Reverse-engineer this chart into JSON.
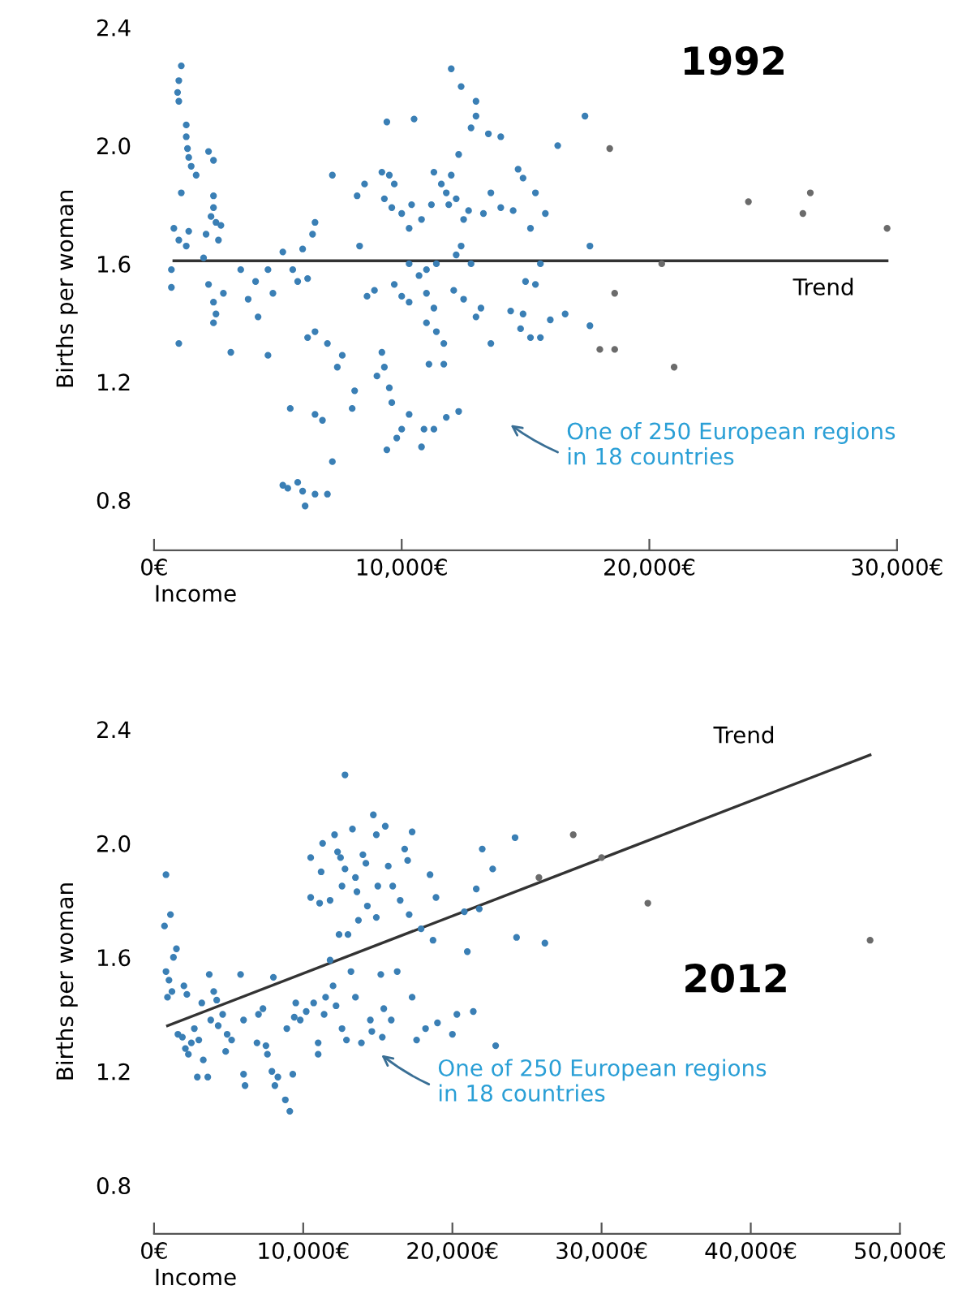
{
  "chart_data": [
    {
      "type": "scatter",
      "title": "1992",
      "xlabel": "Income",
      "ylabel": "Births per woman",
      "xlim": [
        0,
        30000
      ],
      "ylim": [
        0.63,
        2.4
      ],
      "xticks": [
        {
          "value": 0,
          "label": "0€"
        },
        {
          "value": 10000,
          "label": "10,000€"
        },
        {
          "value": 20000,
          "label": "20,000€"
        },
        {
          "value": 30000,
          "label": "30,000€"
        }
      ],
      "yticks": [
        0.8,
        1.2,
        1.6,
        {
          "value": 2.0,
          "label": "2.0"
        },
        2.4
      ],
      "grid": false,
      "series": [
        {
          "type": "scatter",
          "marker": "circle",
          "color": "#3a7fb5",
          "x": [
            1100,
            1000,
            950,
            1000,
            1300,
            1300,
            1350,
            1400,
            1500,
            1700,
            1100,
            800,
            1000,
            1400,
            1300,
            700,
            700,
            1000,
            2200,
            2400,
            2400,
            2400,
            2300,
            2500,
            2700,
            2100,
            2600,
            2000,
            2200,
            2400,
            2500,
            2400,
            2800,
            3100,
            3500,
            3800,
            4100,
            4200,
            4600,
            4800,
            4600,
            5200,
            5600,
            5800,
            6000,
            6200,
            6400,
            6500,
            7200,
            6200,
            6500,
            7000,
            7400,
            7600,
            5500,
            6500,
            6800,
            7200,
            5200,
            5400,
            5800,
            6000,
            6100,
            6500,
            7000,
            8000,
            8100,
            8300,
            8200,
            8500,
            8600,
            8900,
            9200,
            9000,
            9300,
            9500,
            9600,
            9400,
            9800,
            10000,
            10300,
            10800,
            10900,
            11300,
            11800,
            12300,
            9400,
            10500,
            9200,
            9500,
            9700,
            9300,
            9600,
            10000,
            10400,
            10300,
            10800,
            11200,
            11300,
            11600,
            11800,
            12000,
            11900,
            12200,
            12500,
            12700,
            12400,
            12200,
            12800,
            11400,
            11000,
            10300,
            9700,
            10000,
            10300,
            10700,
            11000,
            11300,
            11000,
            11400,
            11700,
            11100,
            11700,
            12100,
            12500,
            13000,
            13200,
            12000,
            12400,
            13000,
            13000,
            12800,
            13500,
            14000,
            12300,
            13600,
            13300,
            14000,
            14700,
            14900,
            14500,
            15400,
            15800,
            15200,
            14400,
            14800,
            14900,
            15200,
            15600,
            15400,
            15600,
            15000,
            13600,
            16000,
            16600,
            16300,
            17400,
            17600,
            17600
          ],
          "values": [
            2.27,
            2.22,
            2.18,
            2.15,
            2.07,
            2.03,
            1.99,
            1.96,
            1.93,
            1.9,
            1.84,
            1.72,
            1.68,
            1.71,
            1.66,
            1.58,
            1.52,
            1.33,
            1.98,
            1.95,
            1.83,
            1.79,
            1.76,
            1.74,
            1.73,
            1.7,
            1.68,
            1.62,
            1.53,
            1.47,
            1.43,
            1.4,
            1.5,
            1.3,
            1.58,
            1.48,
            1.54,
            1.42,
            1.58,
            1.5,
            1.29,
            1.64,
            1.58,
            1.54,
            1.65,
            1.55,
            1.7,
            1.74,
            1.9,
            1.35,
            1.37,
            1.33,
            1.25,
            1.29,
            1.11,
            1.09,
            1.07,
            0.93,
            0.85,
            0.84,
            0.86,
            0.83,
            0.78,
            0.82,
            0.82,
            1.11,
            1.17,
            1.66,
            1.83,
            1.87,
            1.49,
            1.51,
            1.3,
            1.22,
            1.25,
            1.18,
            1.13,
            0.97,
            1.01,
            1.04,
            1.09,
            0.98,
            1.04,
            1.04,
            1.08,
            1.1,
            2.08,
            2.09,
            1.91,
            1.9,
            1.87,
            1.82,
            1.79,
            1.77,
            1.8,
            1.72,
            1.75,
            1.8,
            1.91,
            1.87,
            1.84,
            1.9,
            1.8,
            1.82,
            1.75,
            1.78,
            1.66,
            1.63,
            1.6,
            1.6,
            1.58,
            1.6,
            1.53,
            1.49,
            1.47,
            1.56,
            1.5,
            1.45,
            1.4,
            1.37,
            1.33,
            1.26,
            1.26,
            1.51,
            1.48,
            1.42,
            1.45,
            2.26,
            2.2,
            2.15,
            2.1,
            2.06,
            2.04,
            2.03,
            1.97,
            1.84,
            1.77,
            1.79,
            1.92,
            1.89,
            1.78,
            1.84,
            1.77,
            1.72,
            1.44,
            1.38,
            1.43,
            1.35,
            1.35,
            1.53,
            1.6,
            1.54,
            1.33,
            1.41,
            1.43,
            2.0,
            2.1,
            1.66,
            1.39
          ]
        },
        {
          "type": "scatter",
          "marker": "circle",
          "color": "#6b6b6b",
          "x": [
            18400,
            18600,
            18000,
            18600,
            20500,
            21000,
            24000,
            26200,
            26500,
            29600
          ],
          "values": [
            1.99,
            1.5,
            1.31,
            1.31,
            1.6,
            1.25,
            1.81,
            1.77,
            1.84,
            1.72
          ]
        },
        {
          "type": "line",
          "color": "#333333",
          "x": [
            800,
            29600
          ],
          "values": [
            1.61,
            1.61
          ]
        }
      ],
      "annotations": [
        "Trend",
        "One of 250 European regions\nin 18 countries"
      ]
    },
    {
      "type": "scatter",
      "title": "2012",
      "xlabel": "Income",
      "ylabel": "Births per woman",
      "xlim": [
        0,
        50000
      ],
      "ylim": [
        0.63,
        2.4
      ],
      "xticks": [
        {
          "value": 0,
          "label": "0€"
        },
        {
          "value": 10000,
          "label": "10,000€"
        },
        {
          "value": 20000,
          "label": "20,000€"
        },
        {
          "value": 30000,
          "label": "30,000€"
        },
        {
          "value": 40000,
          "label": "40,000€"
        },
        {
          "value": 50000,
          "label": "50,000€"
        }
      ],
      "yticks": [
        0.8,
        1.2,
        1.6,
        {
          "value": 2.0,
          "label": "2.0"
        },
        2.4
      ],
      "grid": false,
      "series": [
        {
          "type": "scatter",
          "marker": "circle",
          "color": "#3a7fb5",
          "x": [
            800,
            700,
            1100,
            800,
            1000,
            1300,
            1500,
            1200,
            900,
            2000,
            2200,
            1600,
            1900,
            2100,
            2300,
            2500,
            2700,
            3000,
            3200,
            2900,
            3600,
            3300,
            3700,
            4000,
            4200,
            3800,
            4300,
            4600,
            4900,
            5200,
            4800,
            5800,
            6000,
            6000,
            6100,
            6900,
            7000,
            7300,
            7500,
            7600,
            8000,
            7900,
            8100,
            8300,
            8800,
            8900,
            9100,
            9300,
            9400,
            9500,
            9800,
            10200,
            10500,
            10500,
            10700,
            11000,
            11100,
            11200,
            11300,
            11400,
            11000,
            11500,
            11800,
            11800,
            12000,
            12200,
            12100,
            12300,
            12400,
            12600,
            12500,
            12800,
            12600,
            12900,
            13000,
            13200,
            12800,
            13300,
            13500,
            13600,
            13700,
            13500,
            13900,
            14000,
            14200,
            14300,
            14500,
            14600,
            14700,
            14900,
            15000,
            14900,
            15200,
            15400,
            15300,
            15500,
            15700,
            15900,
            16000,
            16300,
            16500,
            16800,
            17000,
            17100,
            17300,
            17300,
            17600,
            17900,
            18200,
            18500,
            18700,
            18900,
            19000,
            20000,
            20300,
            20800,
            21000,
            21400,
            21600,
            21800,
            22000,
            22700,
            22900,
            24200,
            24300,
            26200
          ],
          "values": [
            1.89,
            1.71,
            1.75,
            1.55,
            1.52,
            1.6,
            1.63,
            1.48,
            1.46,
            1.5,
            1.47,
            1.33,
            1.32,
            1.28,
            1.26,
            1.3,
            1.35,
            1.31,
            1.44,
            1.18,
            1.18,
            1.24,
            1.54,
            1.48,
            1.45,
            1.38,
            1.36,
            1.4,
            1.33,
            1.31,
            1.27,
            1.54,
            1.38,
            1.19,
            1.15,
            1.3,
            1.4,
            1.42,
            1.29,
            1.26,
            1.53,
            1.2,
            1.15,
            1.18,
            1.1,
            1.35,
            1.06,
            1.19,
            1.39,
            1.44,
            1.38,
            1.41,
            1.95,
            1.81,
            1.44,
            1.26,
            1.79,
            1.9,
            2.0,
            1.4,
            1.3,
            1.46,
            1.59,
            1.8,
            1.5,
            1.43,
            2.03,
            1.97,
            1.68,
            1.85,
            1.95,
            1.91,
            1.35,
            1.31,
            1.68,
            1.55,
            2.24,
            2.05,
            1.88,
            1.83,
            1.73,
            1.46,
            1.3,
            1.96,
            1.93,
            1.78,
            1.38,
            1.34,
            2.1,
            2.03,
            1.85,
            1.74,
            1.54,
            1.42,
            1.32,
            2.06,
            1.92,
            1.38,
            1.85,
            1.55,
            1.8,
            1.98,
            1.94,
            1.75,
            2.04,
            1.46,
            1.31,
            1.7,
            1.35,
            1.89,
            1.66,
            1.81,
            1.37,
            1.33,
            1.4,
            1.76,
            1.62,
            1.41,
            1.84,
            1.77,
            1.98,
            1.91,
            1.29,
            2.02,
            1.67,
            1.65
          ]
        },
        {
          "type": "scatter",
          "marker": "circle",
          "color": "#6b6b6b",
          "x": [
            25800,
            28100,
            30000,
            33100,
            48000
          ],
          "values": [
            1.88,
            2.03,
            1.95,
            1.79,
            1.66
          ]
        },
        {
          "type": "line",
          "color": "#333333",
          "x": [
            900,
            48000
          ],
          "values": [
            1.36,
            2.31
          ]
        }
      ],
      "annotations": [
        "Trend",
        "One of 250 European regions\nin 18 countries"
      ]
    }
  ]
}
